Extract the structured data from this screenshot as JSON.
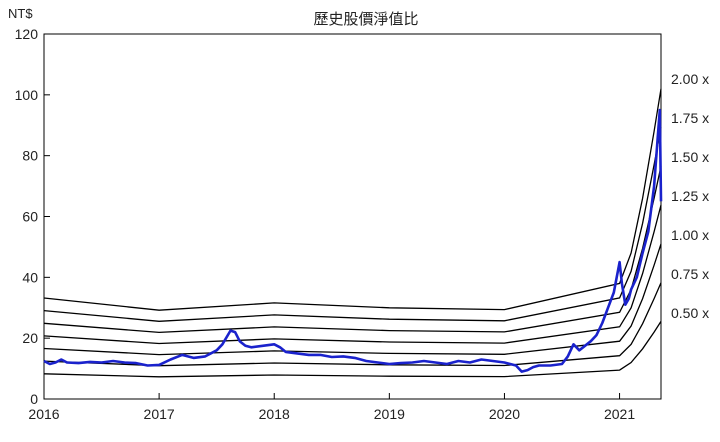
{
  "chart_data": {
    "type": "line",
    "title": "歷史股價淨值比",
    "ylabel": "NT$",
    "xlabel": "",
    "x_range": [
      2016.0,
      2021.36
    ],
    "ylim": [
      0,
      120
    ],
    "x_ticks": [
      2016,
      2017,
      2018,
      2019,
      2020,
      2021
    ],
    "x_tick_labels": [
      "2016",
      "2017",
      "2018",
      "2019",
      "2020",
      "2021"
    ],
    "y_ticks": [
      0,
      20,
      40,
      60,
      80,
      100,
      120
    ],
    "y_tick_labels": [
      "0",
      "20",
      "40",
      "60",
      "80",
      "100",
      "120"
    ],
    "grid": false,
    "legend": "none",
    "colors": {
      "price": "#1a22cc",
      "bands": "#000000"
    },
    "book_value_x": [
      2016.0,
      2017.0,
      2018.0,
      2019.0,
      2020.0,
      2021.0,
      2021.1,
      2021.2,
      2021.3,
      2021.36
    ],
    "book_value_y": [
      16.6,
      14.6,
      15.8,
      15.0,
      14.7,
      19.0,
      24.0,
      33.0,
      44.0,
      51.0
    ],
    "bands": [
      {
        "label": "2.00 x",
        "multiple": 2.0
      },
      {
        "label": "1.75 x",
        "multiple": 1.75
      },
      {
        "label": "1.50 x",
        "multiple": 1.5
      },
      {
        "label": "1.25 x",
        "multiple": 1.25
      },
      {
        "label": "1.00 x",
        "multiple": 1.0
      },
      {
        "label": "0.75 x",
        "multiple": 0.75
      },
      {
        "label": "0.50 x",
        "multiple": 0.5
      }
    ],
    "price_x": [
      2016.0,
      2016.05,
      2016.1,
      2016.15,
      2016.2,
      2016.3,
      2016.4,
      2016.5,
      2016.6,
      2016.7,
      2016.8,
      2016.9,
      2017.0,
      2017.1,
      2017.2,
      2017.3,
      2017.4,
      2017.5,
      2017.55,
      2017.62,
      2017.66,
      2017.7,
      2017.75,
      2017.8,
      2017.9,
      2018.0,
      2018.05,
      2018.1,
      2018.2,
      2018.3,
      2018.4,
      2018.5,
      2018.6,
      2018.7,
      2018.8,
      2018.9,
      2019.0,
      2019.1,
      2019.2,
      2019.3,
      2019.4,
      2019.5,
      2019.6,
      2019.7,
      2019.8,
      2019.9,
      2020.0,
      2020.05,
      2020.1,
      2020.15,
      2020.2,
      2020.25,
      2020.3,
      2020.4,
      2020.5,
      2020.55,
      2020.6,
      2020.65,
      2020.7,
      2020.75,
      2020.8,
      2020.85,
      2020.9,
      2020.95,
      2021.0,
      2021.02,
      2021.05,
      2021.08,
      2021.1,
      2021.15,
      2021.2,
      2021.25,
      2021.3,
      2021.33,
      2021.35,
      2021.36
    ],
    "price_y": [
      12.5,
      11.5,
      12.0,
      13.0,
      12.0,
      11.8,
      12.2,
      12.0,
      12.5,
      12.0,
      11.8,
      11.0,
      11.2,
      13.0,
      14.5,
      13.5,
      14.0,
      16.0,
      18.0,
      22.5,
      22.0,
      19.0,
      17.5,
      17.0,
      17.5,
      18.0,
      17.0,
      15.5,
      15.0,
      14.5,
      14.5,
      13.8,
      14.0,
      13.5,
      12.5,
      12.0,
      11.5,
      11.8,
      12.0,
      12.5,
      12.0,
      11.5,
      12.5,
      12.0,
      13.0,
      12.5,
      12.0,
      11.5,
      11.0,
      9.0,
      9.5,
      10.5,
      11.0,
      11.0,
      11.5,
      14.0,
      18.0,
      16.0,
      17.5,
      19.0,
      21.0,
      25.0,
      30.0,
      35.0,
      45.0,
      38.0,
      31.0,
      33.0,
      36.0,
      40.0,
      48.0,
      55.0,
      70.0,
      85.0,
      95.0,
      65.0
    ]
  }
}
